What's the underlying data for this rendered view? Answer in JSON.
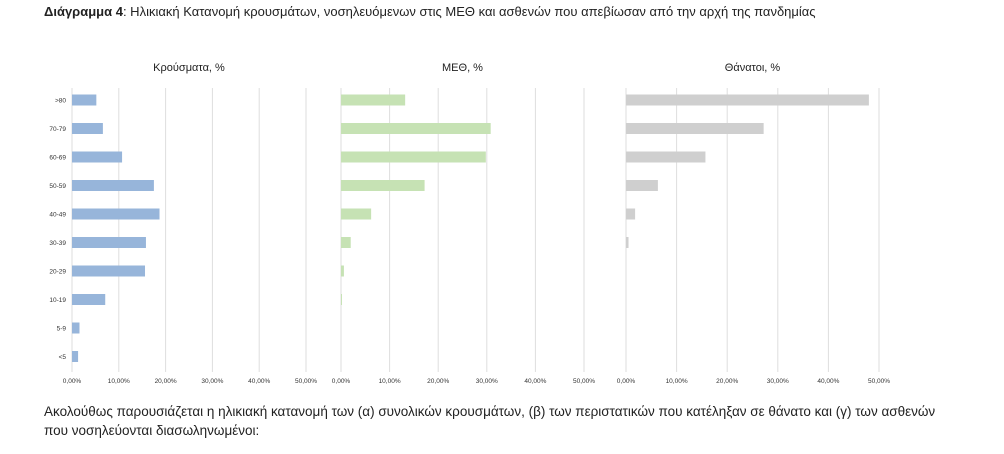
{
  "caption": {
    "label": "Διάγραμμα 4",
    "text": ": Ηλικιακή Κατανομή κρουσμάτων, νοσηλευόμενων στις ΜΕΘ και ασθενών που απεβίωσαν από την αρχή της πανδημίας"
  },
  "paragraph": "Ακολούθως παρουσιάζεται η ηλικιακή κατανομή των (α) συνολικών κρουσμάτων, (β) των περιστατικών που κατέληξαν σε θάνατο και (γ) των ασθενών που νοσηλεύονται διασωληνωμένοι:",
  "chart_data": [
    {
      "type": "bar",
      "orientation": "horizontal",
      "title": "Κρούσματα, %",
      "color": "#97b5da",
      "categories": [
        ">80",
        "70-79",
        "60-69",
        "50-59",
        "40-49",
        "30-39",
        "20-29",
        "10-19",
        "5-9",
        "<5"
      ],
      "values": [
        5.2,
        6.6,
        10.7,
        17.5,
        18.7,
        15.8,
        15.6,
        7.1,
        1.6,
        1.3
      ],
      "xlim": [
        0,
        50
      ],
      "xticks": [
        "0,00%",
        "10,00%",
        "20,00%",
        "30,00%",
        "40,00%",
        "50,00%"
      ],
      "grid": true
    },
    {
      "type": "bar",
      "orientation": "horizontal",
      "title": "ΜΕΘ, %",
      "color": "#c6e2b4",
      "categories": [
        ">80",
        "70-79",
        "60-69",
        "50-59",
        "40-49",
        "30-39",
        "20-29",
        "10-19",
        "5-9",
        "<5"
      ],
      "values": [
        13.2,
        30.8,
        29.8,
        17.2,
        6.2,
        2.0,
        0.6,
        0.2,
        0,
        0
      ],
      "xlim": [
        0,
        50
      ],
      "xticks": [
        "0,00%",
        "10,00%",
        "20,00%",
        "30,00%",
        "40,00%",
        "50,00%"
      ],
      "grid": true
    },
    {
      "type": "bar",
      "orientation": "horizontal",
      "title": "Θάνατοι, %",
      "color": "#cfcfcf",
      "categories": [
        ">80",
        "70-79",
        "60-69",
        "50-59",
        "40-49",
        "30-39",
        "20-29",
        "10-19",
        "5-9",
        "<5"
      ],
      "values": [
        48.0,
        27.2,
        15.7,
        6.3,
        1.8,
        0.5,
        0,
        0,
        0,
        0
      ],
      "xlim": [
        0,
        50
      ],
      "xticks": [
        "0,00%",
        "10,00%",
        "20,00%",
        "30,00%",
        "40,00%",
        "50,00%"
      ],
      "grid": true
    }
  ]
}
